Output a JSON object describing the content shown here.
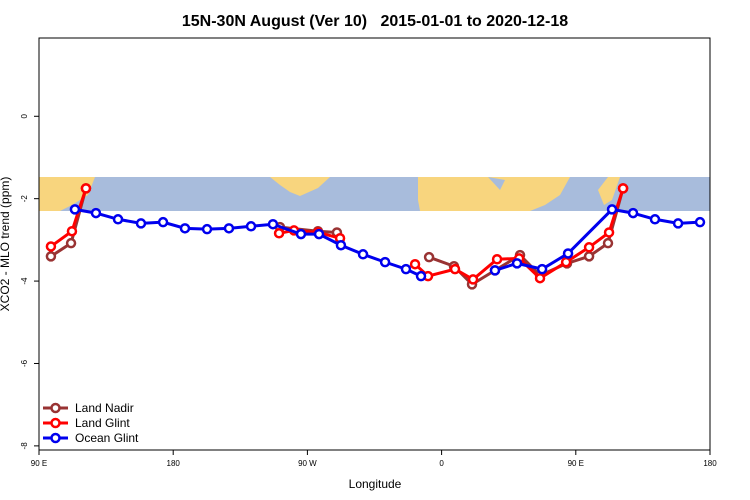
{
  "chart_data": {
    "type": "line",
    "title": "15N-30N August (Ver 10)   2015-01-01 to 2020-12-18",
    "x_label": "Longitude",
    "y_label": "XCO2 - MLO trend (ppm)",
    "xlim": [
      90,
      540
    ],
    "ylim": [
      -8.1,
      1.9
    ],
    "xticks": [
      {
        "value": 90,
        "label": "90 E"
      },
      180,
      {
        "value": 270,
        "label": "90 W"
      },
      {
        "value": 360,
        "label": "0"
      },
      {
        "value": 450,
        "label": "90 E"
      },
      {
        "value": 540,
        "label": "180"
      }
    ],
    "yticks": [
      -8,
      -6,
      -4,
      -2,
      0
    ],
    "legend": "bottom-left",
    "series": [
      {
        "name": "Land Nadir",
        "color": "#993333",
        "x": [
          98.0,
          111.5,
          121.5,
          null,
          251.6,
          277.1,
          289.8,
          null,
          351.6,
          368.3,
          380.4,
          395.8,
          412.6,
          426.0,
          444.1,
          458.9,
          471.6,
          481.7
        ],
        "values": [
          -3.4,
          -3.08,
          -1.75,
          null,
          -2.69,
          -2.79,
          -2.82,
          null,
          -3.42,
          -3.64,
          -4.08,
          -3.74,
          -3.37,
          -3.86,
          -3.57,
          -3.4,
          -3.08,
          -1.75
        ]
      },
      {
        "name": "Land Glint",
        "color": "#ff0000",
        "x": [
          98.0,
          112.1,
          121.5,
          null,
          251.0,
          261.0,
          277.1,
          291.9,
          null,
          342.2,
          350.9,
          369.0,
          381.1,
          397.2,
          412.0,
          426.0,
          443.5,
          458.9,
          472.3,
          481.7
        ],
        "values": [
          -3.16,
          -2.79,
          -1.75,
          null,
          -2.84,
          -2.77,
          -2.82,
          -2.96,
          null,
          -3.59,
          -3.88,
          -3.71,
          -3.96,
          -3.47,
          -3.45,
          -3.93,
          -3.54,
          -3.18,
          -2.82,
          -1.75
        ]
      },
      {
        "name": "Ocean Glint",
        "color": "#0000ee",
        "x": [
          114.1,
          128.2,
          143.0,
          158.4,
          173.2,
          187.9,
          202.7,
          217.4,
          232.2,
          246.9,
          265.7,
          277.8,
          292.5,
          307.3,
          322.1,
          336.1,
          346.2,
          null,
          395.8,
          410.6,
          427.4,
          444.8,
          474.3,
          488.4,
          503.1,
          518.6,
          533.3
        ],
        "values": [
          -2.26,
          -2.35,
          -2.5,
          -2.6,
          -2.57,
          -2.72,
          -2.74,
          -2.72,
          -2.67,
          -2.62,
          -2.86,
          -2.86,
          -3.13,
          -3.35,
          -3.54,
          -3.71,
          -3.88,
          null,
          -3.74,
          -3.57,
          -3.71,
          -3.33,
          -2.26,
          -2.35,
          -2.5,
          -2.6,
          -2.57
        ]
      }
    ]
  }
}
